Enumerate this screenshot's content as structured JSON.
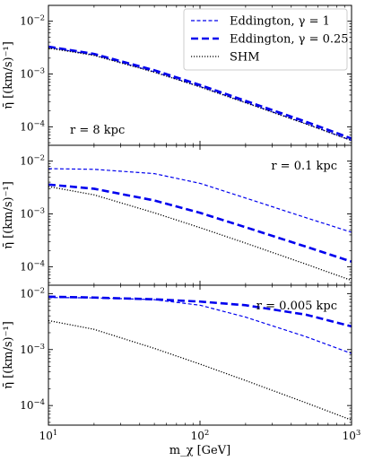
{
  "chart_data": [
    {
      "type": "line",
      "panel": "top",
      "annotation": "r = 8 kpc",
      "ylabel": "η̄ [(km/s)⁻¹]",
      "xlabel": "",
      "xscale": "log",
      "yscale": "log",
      "xlim": [
        10,
        1000
      ],
      "ylim": [
        5e-05,
        0.02
      ],
      "series": [
        {
          "name": "Eddington, γ = 1",
          "style": "dashed-thin",
          "color": "#0000ee",
          "x": [
            10,
            20,
            50,
            100,
            200,
            500,
            1000
          ],
          "y": [
            0.0032,
            0.0023,
            0.0011,
            0.00058,
            0.00029,
            0.000115,
            5.5e-05
          ]
        },
        {
          "name": "Eddington, γ = 0.25",
          "style": "dashed-thick",
          "color": "#0000ee",
          "x": [
            10,
            20,
            50,
            100,
            200,
            500,
            1000
          ],
          "y": [
            0.0033,
            0.0024,
            0.00118,
            0.00062,
            0.00031,
            0.000125,
            6e-05
          ]
        },
        {
          "name": "SHM",
          "style": "dotted",
          "color": "#000000",
          "x": [
            10,
            20,
            50,
            100,
            200,
            500,
            1000
          ],
          "y": [
            0.0031,
            0.00225,
            0.00108,
            0.00057,
            0.000285,
            0.000113,
            5.5e-05
          ]
        }
      ]
    },
    {
      "type": "line",
      "panel": "middle",
      "annotation": "r = 0.1 kpc",
      "ylabel": "η̄ [(km/s)⁻¹]",
      "xlabel": "",
      "xscale": "log",
      "yscale": "log",
      "xlim": [
        10,
        1000
      ],
      "ylim": [
        5e-05,
        0.02
      ],
      "series": [
        {
          "name": "Eddington, γ = 1",
          "style": "dashed-thin",
          "color": "#0000ee",
          "x": [
            10,
            20,
            50,
            100,
            200,
            500,
            1000
          ],
          "y": [
            0.0072,
            0.007,
            0.0058,
            0.0038,
            0.002,
            0.00085,
            0.00045
          ]
        },
        {
          "name": "Eddington, γ = 0.25",
          "style": "dashed-thick",
          "color": "#0000ee",
          "x": [
            10,
            20,
            50,
            100,
            200,
            500,
            1000
          ],
          "y": [
            0.0036,
            0.003,
            0.0018,
            0.00105,
            0.00056,
            0.00024,
            0.000125
          ]
        },
        {
          "name": "SHM",
          "style": "dotted",
          "color": "#000000",
          "x": [
            10,
            20,
            50,
            100,
            200,
            500,
            1000
          ],
          "y": [
            0.0033,
            0.0023,
            0.00105,
            0.00055,
            0.00028,
            0.000112,
            5.5e-05
          ]
        }
      ]
    },
    {
      "type": "line",
      "panel": "bottom",
      "annotation": "r = 0.005 kpc",
      "ylabel": "η̄ [(km/s)⁻¹]",
      "xlabel": "m_χ [GeV]",
      "xscale": "log",
      "yscale": "log",
      "xlim": [
        10,
        1000
      ],
      "ylim": [
        5e-05,
        0.015
      ],
      "series": [
        {
          "name": "Eddington, γ = 1",
          "style": "dashed-thin",
          "color": "#0000ee",
          "x": [
            10,
            20,
            50,
            100,
            200,
            500,
            1000
          ],
          "y": [
            0.0085,
            0.0084,
            0.0078,
            0.0062,
            0.0038,
            0.0017,
            0.00085
          ]
        },
        {
          "name": "Eddington, γ = 0.25",
          "style": "dashed-thick",
          "color": "#0000ee",
          "x": [
            10,
            20,
            50,
            100,
            200,
            500,
            1000
          ],
          "y": [
            0.0088,
            0.0085,
            0.0079,
            0.0072,
            0.0062,
            0.0042,
            0.0026
          ]
        },
        {
          "name": "SHM",
          "style": "dotted",
          "color": "#000000",
          "x": [
            10,
            20,
            50,
            100,
            200,
            500,
            1000
          ],
          "y": [
            0.0033,
            0.0023,
            0.00105,
            0.00055,
            0.00028,
            0.000112,
            5.5e-05
          ]
        }
      ]
    }
  ],
  "legend": {
    "placement": "top-right of top panel",
    "entries": [
      {
        "label": "Eddington, γ = 1",
        "style": "dashed-thin",
        "color": "#0000ee"
      },
      {
        "label": "Eddington, γ = 0.25",
        "style": "dashed-thick",
        "color": "#0000ee"
      },
      {
        "label": "SHM",
        "style": "dotted",
        "color": "#000000"
      }
    ]
  },
  "x_ticks": [
    {
      "base": "10",
      "exp": "1"
    },
    {
      "base": "10",
      "exp": "2"
    },
    {
      "base": "10",
      "exp": "3"
    }
  ],
  "y_ticks": [
    {
      "base": "10",
      "exp": "−2"
    },
    {
      "base": "10",
      "exp": "−3"
    },
    {
      "base": "10",
      "exp": "−4"
    }
  ],
  "colors": {
    "eddington": "#0000ee",
    "shm": "#000000"
  }
}
